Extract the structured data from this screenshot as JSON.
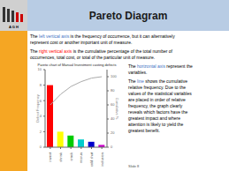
{
  "chart_data": {
    "type": "bar",
    "title": "Pareto chart of Manual Investment casting defects",
    "categories": [
      "invest",
      "shrink",
      "crack",
      "misrun",
      "cold shut",
      "inclusion"
    ],
    "series": [
      {
        "type": "bar",
        "colors": [
          "#ff0000",
          "#ffff00",
          "#00cc00",
          "#00cccc",
          "#0000cc",
          "#cc00cc"
        ],
        "values": [
          8,
          2,
          1.5,
          1,
          0.7,
          0.3
        ]
      },
      {
        "type": "line",
        "color": "#aaaaaa",
        "axis": "y2",
        "values": [
          60,
          75,
          86,
          93,
          98,
          100
        ]
      }
    ],
    "ylabel": "Defect Frequency",
    "y2label": "Cumulative %",
    "ylim": [
      0,
      10
    ],
    "yticks": [
      0,
      2,
      4,
      6,
      8,
      10
    ],
    "y2lim": [
      0,
      110
    ],
    "y2ticks": [
      0,
      20,
      40,
      60,
      80,
      100
    ],
    "grid": false,
    "annotations": [
      {
        "lines": [
          [
            {
              "text": "Pareto Diagram",
              "color": "#1a1a1a"
            }
          ]
        ]
      },
      {
        "lines": [
          [
            {
              "text": "A G H",
              "color": "#000000"
            }
          ]
        ]
      },
      {
        "lines": [
          [
            {
              "text": "The ",
              "color": "#000000"
            },
            {
              "text": "left vertical axis",
              "color": "#4472c4"
            },
            {
              "text": " is the frequency of occurrence, but it can alternatively",
              "color": "#000000"
            }
          ],
          [
            {
              "text": "represent cost or another important unit of measure.",
              "color": "#000000"
            }
          ],
          [
            {
              "text": "The ",
              "color": "#000000"
            },
            {
              "text": "right vertical axis",
              "color": "#ff0000"
            },
            {
              "text": " is the cumulative percentage of the total number of",
              "color": "#000000"
            }
          ],
          [
            {
              "text": "occurrences, total cost, or total of the particular unit of measure.",
              "color": "#000000"
            }
          ]
        ]
      },
      {
        "lines": [
          [
            {
              "text": "The ",
              "color": "#000000"
            },
            {
              "text": "horizontal axis",
              "color": "#4472c4"
            },
            {
              "text": " represent the",
              "color": "#000000"
            }
          ],
          [
            {
              "text": "variables.",
              "color": "#000000"
            }
          ],
          [
            {
              "text": "The ",
              "color": "#000000"
            },
            {
              "text": "line",
              "color": "#4472c4"
            },
            {
              "text": " shows the cumulative",
              "color": "#000000"
            }
          ],
          [
            {
              "text": "relative frequency. Due to the",
              "color": "#000000"
            }
          ],
          [
            {
              "text": "values of the statistical variables",
              "color": "#000000"
            }
          ],
          [
            {
              "text": "are placed in order of relative",
              "color": "#000000"
            }
          ],
          [
            {
              "text": "frequency, the graph clearly",
              "color": "#000000"
            }
          ],
          [
            {
              "text": "reveals which factors have the",
              "color": "#000000"
            }
          ],
          [
            {
              "text": "greatest impact and where",
              "color": "#000000"
            }
          ],
          [
            {
              "text": "attention is likely to yield the",
              "color": "#000000"
            }
          ],
          [
            {
              "text": "greatest benefit.",
              "color": "#000000"
            }
          ]
        ]
      },
      {
        "lines": [
          [
            {
              "text": "Slide 8",
              "color": "#555555"
            }
          ]
        ]
      }
    ]
  }
}
